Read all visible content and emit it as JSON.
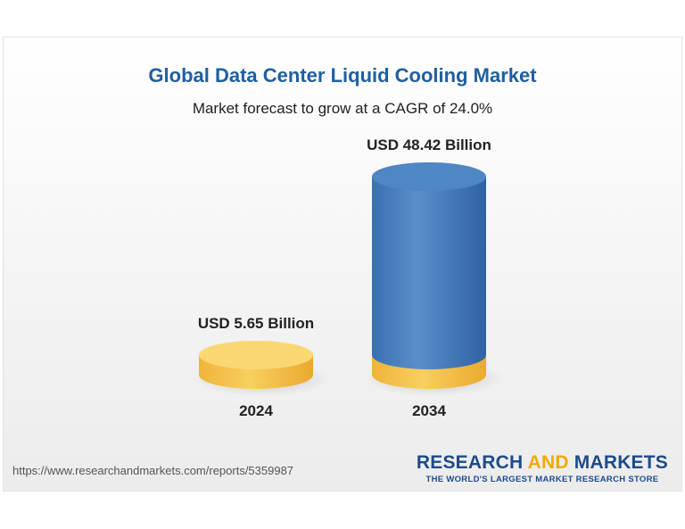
{
  "chart_data": {
    "type": "bar",
    "title": "Global Data Center Liquid Cooling Market",
    "subtitle": "Market forecast to grow at a CAGR of 24.0%",
    "categories": [
      "2024",
      "2034"
    ],
    "values": [
      5.65,
      48.42
    ],
    "data_labels": [
      "USD 5.65 Billion",
      "USD 48.42 Billion"
    ],
    "unit": "USD Billion",
    "colors": {
      "base": "#f4c24a",
      "top": "#ffe08a",
      "bar": "#3f78b8",
      "bar_top": "#5a8fcb"
    }
  },
  "source_url": "https://www.researchandmarkets.com/reports/5359987",
  "brand": {
    "name_part1": "RESEARCH ",
    "name_part2": "AND",
    "name_part3": " MARKETS",
    "tagline": "THE WORLD'S LARGEST MARKET RESEARCH STORE"
  }
}
